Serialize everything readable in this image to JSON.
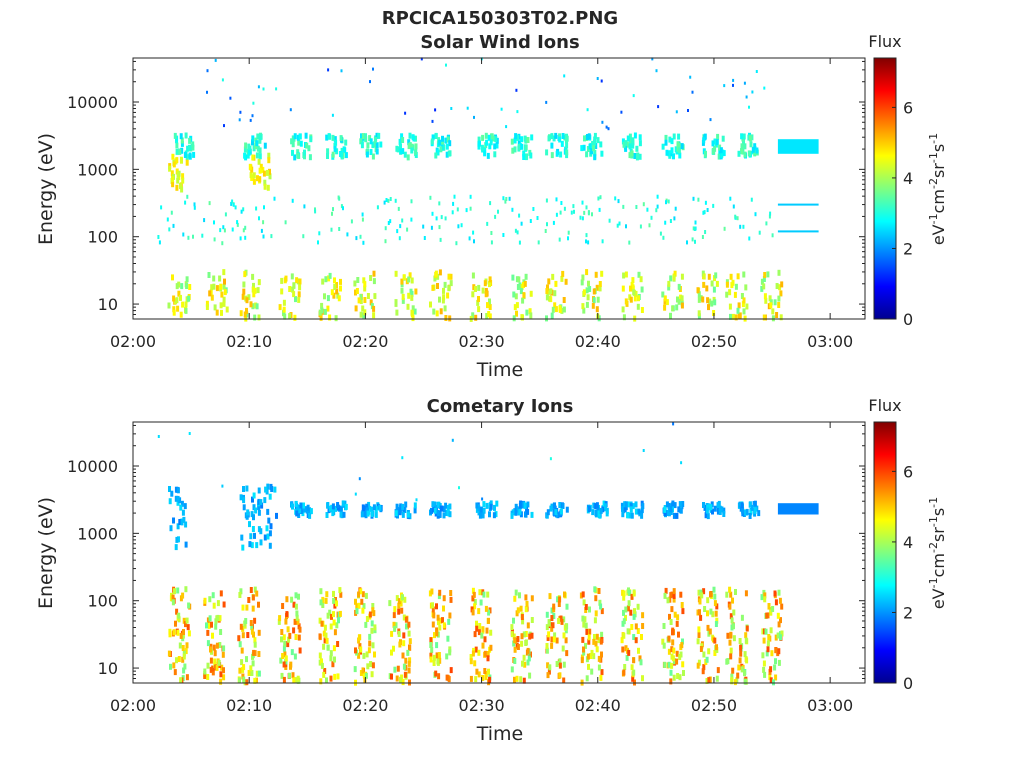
{
  "figure_title": "RPCICA150303T02.PNG",
  "chart_data": [
    {
      "type": "heatmap",
      "title": "Solar Wind Ions",
      "xlabel": "Time",
      "ylabel": "Energy (eV)",
      "x_ticks": [
        "02:00",
        "02:10",
        "02:20",
        "02:30",
        "02:40",
        "02:50",
        "03:00"
      ],
      "x_range_minutes": [
        0,
        63
      ],
      "y_ticks": [
        "10",
        "100",
        "1000",
        "10000"
      ],
      "y_scale": "log",
      "y_range": [
        6,
        45000
      ],
      "colorbar": {
        "title": "Flux",
        "label": "eV-1cm-2sr-1s-1",
        "ticks": [
          "0",
          "2",
          "4",
          "6"
        ],
        "range": [
          0,
          7.4
        ],
        "colormap": "jet"
      },
      "features": [
        {
          "name": "low-energy bursts",
          "energy_range_ev": [
            6,
            30
          ],
          "flux_range": [
            3.5,
            5.2
          ],
          "minutes": [
            3.5,
            6.8,
            9.5,
            13,
            16.5,
            19.5,
            23,
            26,
            29.5,
            33,
            36,
            39,
            42.5,
            46,
            49,
            51.5,
            54.5
          ]
        },
        {
          "name": "mid-energy ions",
          "energy_range_ev": [
            80,
            400
          ],
          "flux_range": [
            2.5,
            3.5
          ]
        },
        {
          "name": "solar wind protons",
          "energy_range_ev": [
            1500,
            3200
          ],
          "flux_range": [
            2.5,
            3.5
          ],
          "minutes": [
            4,
            10,
            14,
            17,
            20,
            23,
            26,
            30,
            33,
            36,
            39,
            42.5,
            46,
            49.5,
            52.5
          ]
        },
        {
          "name": "early high-flux burst",
          "energy_range_ev": [
            500,
            1600
          ],
          "flux_range": [
            4,
            5
          ],
          "minutes": [
            3.5,
            10.5
          ]
        },
        {
          "name": "constant block",
          "minute_range": [
            55.5,
            59
          ],
          "energy_range_ev": [
            1700,
            2800
          ],
          "flux": 2.6
        },
        {
          "name": "constant line",
          "minute_range": [
            55.5,
            59
          ],
          "energy_ev": 300,
          "flux": 2.4
        },
        {
          "name": "constant line",
          "minute_range": [
            55.5,
            59
          ],
          "energy_ev": 120,
          "flux": 2.4
        }
      ]
    },
    {
      "type": "heatmap",
      "title": "Cometary Ions",
      "xlabel": "Time",
      "ylabel": "Energy (eV)",
      "x_ticks": [
        "02:00",
        "02:10",
        "02:20",
        "02:30",
        "02:40",
        "02:50",
        "03:00"
      ],
      "x_range_minutes": [
        0,
        63
      ],
      "y_ticks": [
        "10",
        "100",
        "1000",
        "10000"
      ],
      "y_scale": "log",
      "y_range": [
        6,
        45000
      ],
      "colorbar": {
        "title": "Flux",
        "label": "eV-1cm-2sr-1s-1",
        "ticks": [
          "0",
          "2",
          "4",
          "6"
        ],
        "range": [
          0,
          7.4
        ],
        "colormap": "jet"
      },
      "features": [
        {
          "name": "low-energy cometary ions",
          "energy_range_ev": [
            6,
            150
          ],
          "flux_range": [
            3.5,
            6
          ],
          "minutes": [
            3.5,
            6.5,
            9.5,
            13,
            16.5,
            19.5,
            22.5,
            26,
            29.5,
            33,
            36,
            39,
            42.5,
            46,
            49,
            51.5,
            54.5
          ]
        },
        {
          "name": "high-energy ions",
          "energy_range_ev": [
            1800,
            2800
          ],
          "flux_range": [
            1.8,
            2.6
          ],
          "minutes": [
            14,
            17,
            20,
            23,
            26,
            30,
            33,
            36,
            39.5,
            42.5,
            46,
            49.5,
            52.5
          ]
        },
        {
          "name": "early high-energy burst",
          "energy_range_ev": [
            600,
            5000
          ],
          "flux_range": [
            1.8,
            2.6
          ],
          "minutes": [
            3.5,
            9.5,
            11
          ]
        },
        {
          "name": "constant block",
          "minute_range": [
            55.5,
            59
          ],
          "energy_range_ev": [
            1900,
            2800
          ],
          "flux": 1.9
        }
      ]
    }
  ]
}
